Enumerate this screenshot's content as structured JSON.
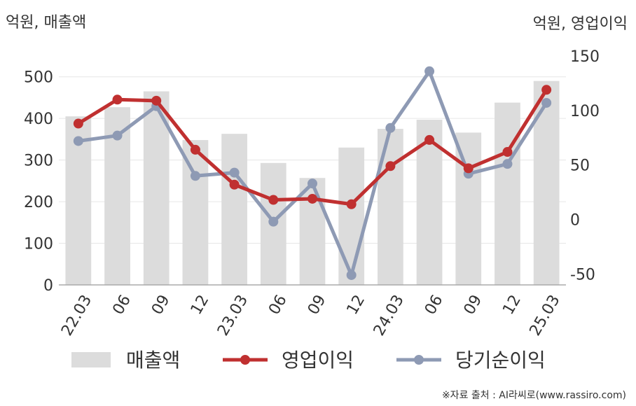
{
  "left_unit_label": "억원, 매출액",
  "right_unit_label": "억원, 영업이익",
  "source": "※자료 출처 : AI라씨로(www.rassiro.com)",
  "colors": {
    "bar": "#dcdcdc",
    "operating": "#c03030",
    "net": "#8e9ab4",
    "grid": "#e6e6e6",
    "axis": "#aaaaaa",
    "text": "#333333"
  },
  "chart_data": {
    "type": "bar",
    "categories": [
      "22.03",
      "06",
      "09",
      "12",
      "23.03",
      "06",
      "09",
      "12",
      "24.03",
      "06",
      "09",
      "12",
      "25.03"
    ],
    "y_left": {
      "ylim": [
        0,
        550
      ],
      "ticks": [
        0,
        100,
        200,
        300,
        400,
        500
      ]
    },
    "y_right": {
      "ylim": [
        -60,
        150
      ],
      "ticks": [
        -50,
        0,
        50,
        100,
        150
      ]
    },
    "series": [
      {
        "name": "매출액",
        "type": "bar",
        "axis": "left",
        "values": [
          405,
          427,
          465,
          348,
          363,
          293,
          257,
          330,
          375,
          397,
          366,
          438,
          490
        ]
      },
      {
        "name": "영업이익",
        "type": "line",
        "axis": "right",
        "values": [
          88,
          110,
          109,
          64,
          32,
          18,
          19,
          14,
          49,
          73,
          47,
          62,
          119
        ]
      },
      {
        "name": "당기순이익",
        "type": "line",
        "axis": "right",
        "values": [
          72,
          77,
          104,
          40,
          43,
          -2,
          33,
          -51,
          84,
          136,
          42,
          51,
          107
        ]
      }
    ],
    "legend_position": "bottom",
    "grid": true
  }
}
